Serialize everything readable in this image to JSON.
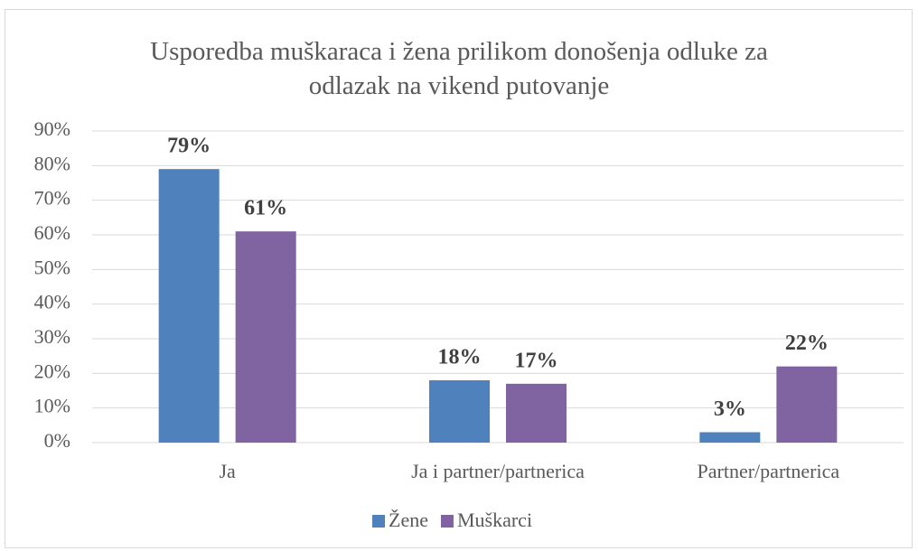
{
  "chart_data": {
    "type": "bar",
    "title": "Usporedba muškaraca i žena prilikom donošenja odluke za odlazak na vikend putovanje",
    "categories": [
      "Ja",
      "Ja i partner/partnerica",
      "Partner/partnerica"
    ],
    "series": [
      {
        "name": "Žene",
        "color": "#4f81bd",
        "values": [
          79,
          18,
          3
        ],
        "value_labels": [
          "79%",
          "18%",
          "3%"
        ]
      },
      {
        "name": "Muškarci",
        "color": "#8064a2",
        "values": [
          61,
          17,
          22
        ],
        "value_labels": [
          "61%",
          "17%",
          "22%"
        ]
      }
    ],
    "ylim": [
      0,
      90
    ],
    "yticks": [
      {
        "value": 0,
        "label": "0%"
      },
      {
        "value": 10,
        "label": "10%"
      },
      {
        "value": 20,
        "label": "20%"
      },
      {
        "value": 30,
        "label": "30%"
      },
      {
        "value": 40,
        "label": "40%"
      },
      {
        "value": 50,
        "label": "50%"
      },
      {
        "value": 60,
        "label": "60%"
      },
      {
        "value": 70,
        "label": "70%"
      },
      {
        "value": 80,
        "label": "80%"
      },
      {
        "value": 90,
        "label": "90%"
      }
    ],
    "grid": true,
    "legend": "bottom"
  }
}
